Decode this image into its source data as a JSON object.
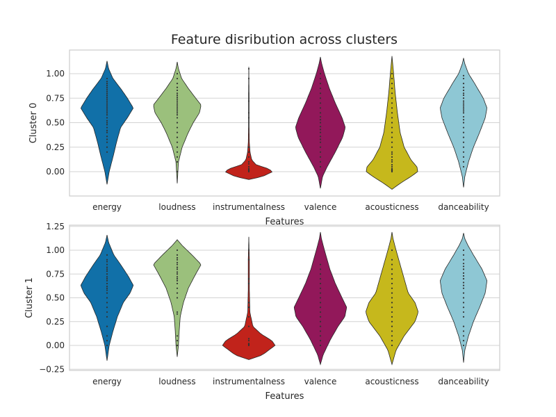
{
  "title": "Feature disribution across clusters",
  "colors": {
    "energy": "#1170a8",
    "loudness": "#9bc07c",
    "instrumentalness": "#c1231b",
    "valence": "#92185a",
    "acousticness": "#c6b81c",
    "danceability": "#8ec7d4",
    "grid": "#d3d3d3",
    "frame": "#cfcfcf",
    "outline": "#262626"
  },
  "chart_data": [
    {
      "type": "violin",
      "xlabel": "Features",
      "ylabel": "Cluster 0",
      "categories": [
        "energy",
        "loudness",
        "instrumentalness",
        "valence",
        "acousticness",
        "danceability"
      ],
      "ylim": [
        -0.25,
        1.15
      ],
      "yticks": [
        0.0,
        0.25,
        0.5,
        0.75,
        1.0
      ],
      "ytick_labels": [
        "0.00",
        "0.25",
        "0.50",
        "0.75",
        "1.00"
      ],
      "grid": true,
      "violins": [
        {
          "category": "energy",
          "min": -0.13,
          "max": 1.13,
          "max_half_width": 0.55,
          "profile": [
            [
              -0.13,
              0.0
            ],
            [
              0.0,
              0.08
            ],
            [
              0.15,
              0.22
            ],
            [
              0.3,
              0.35
            ],
            [
              0.45,
              0.5
            ],
            [
              0.55,
              0.75
            ],
            [
              0.65,
              0.97
            ],
            [
              0.75,
              0.75
            ],
            [
              0.85,
              0.5
            ],
            [
              0.95,
              0.22
            ],
            [
              1.05,
              0.06
            ],
            [
              1.13,
              0.0
            ]
          ],
          "points": [
            0.2,
            0.25,
            0.3,
            0.33,
            0.36,
            0.4,
            0.42,
            0.45,
            0.48,
            0.5,
            0.52,
            0.55,
            0.58,
            0.6,
            0.62,
            0.64,
            0.66,
            0.68,
            0.7,
            0.72,
            0.74,
            0.76,
            0.78,
            0.8,
            0.82,
            0.84,
            0.86,
            0.88,
            0.9,
            0.92,
            0.95
          ]
        },
        {
          "category": "loudness",
          "min": -0.12,
          "max": 1.12,
          "max_half_width": 0.5,
          "profile": [
            [
              -0.12,
              0.0
            ],
            [
              0.1,
              0.05
            ],
            [
              0.25,
              0.2
            ],
            [
              0.4,
              0.45
            ],
            [
              0.5,
              0.65
            ],
            [
              0.6,
              0.9
            ],
            [
              0.68,
              0.97
            ],
            [
              0.75,
              0.75
            ],
            [
              0.85,
              0.45
            ],
            [
              0.95,
              0.18
            ],
            [
              1.05,
              0.05
            ],
            [
              1.12,
              0.0
            ]
          ],
          "points": [
            0.0,
            0.1,
            0.15,
            0.2,
            0.25,
            0.3,
            0.35,
            0.4,
            0.45,
            0.5,
            0.55,
            0.58,
            0.6,
            0.62,
            0.64,
            0.66,
            0.68,
            0.7,
            0.72,
            0.74,
            0.76,
            0.78,
            0.8,
            0.83,
            0.86,
            0.9,
            0.95,
            1.0
          ]
        },
        {
          "category": "instrumentalness",
          "min": -0.08,
          "max": 1.07,
          "max_half_width": 0.5,
          "profile": [
            [
              -0.08,
              0.0
            ],
            [
              -0.05,
              0.55
            ],
            [
              0.0,
              0.97
            ],
            [
              0.03,
              0.8
            ],
            [
              0.07,
              0.3
            ],
            [
              0.12,
              0.12
            ],
            [
              0.2,
              0.05
            ],
            [
              0.3,
              0.02
            ],
            [
              0.5,
              0.01
            ],
            [
              0.8,
              0.01
            ],
            [
              1.07,
              0.0
            ]
          ],
          "points": [
            0.0,
            0.01,
            0.02,
            0.03,
            0.05,
            0.08,
            0.1,
            0.15,
            0.2,
            0.25,
            0.55,
            0.6,
            0.72,
            0.95,
            1.05
          ]
        },
        {
          "category": "valence",
          "min": -0.17,
          "max": 1.17,
          "max_half_width": 0.55,
          "profile": [
            [
              -0.17,
              0.0
            ],
            [
              -0.05,
              0.08
            ],
            [
              0.05,
              0.25
            ],
            [
              0.2,
              0.55
            ],
            [
              0.35,
              0.82
            ],
            [
              0.45,
              0.92
            ],
            [
              0.55,
              0.8
            ],
            [
              0.7,
              0.55
            ],
            [
              0.85,
              0.33
            ],
            [
              1.0,
              0.15
            ],
            [
              1.1,
              0.05
            ],
            [
              1.17,
              0.0
            ]
          ],
          "points": [
            0.05,
            0.1,
            0.15,
            0.2,
            0.25,
            0.3,
            0.33,
            0.36,
            0.4,
            0.43,
            0.46,
            0.5,
            0.53,
            0.56,
            0.6,
            0.65,
            0.7,
            0.75,
            0.8,
            0.85,
            0.9,
            0.95,
            1.0
          ]
        },
        {
          "category": "acousticness",
          "min": -0.18,
          "max": 1.18,
          "max_half_width": 0.55,
          "profile": [
            [
              -0.18,
              0.0
            ],
            [
              -0.12,
              0.3
            ],
            [
              -0.05,
              0.7
            ],
            [
              0.0,
              0.95
            ],
            [
              0.05,
              0.92
            ],
            [
              0.12,
              0.7
            ],
            [
              0.25,
              0.45
            ],
            [
              0.4,
              0.3
            ],
            [
              0.6,
              0.2
            ],
            [
              0.8,
              0.12
            ],
            [
              1.0,
              0.06
            ],
            [
              1.18,
              0.0
            ]
          ],
          "points": [
            0.0,
            0.01,
            0.02,
            0.03,
            0.05,
            0.07,
            0.1,
            0.12,
            0.15,
            0.18,
            0.2,
            0.25,
            0.3,
            0.35,
            0.4,
            0.45,
            0.5,
            0.55,
            0.6,
            0.65,
            0.7,
            0.75,
            0.8,
            0.85,
            0.9,
            0.95,
            1.0
          ]
        },
        {
          "category": "danceability",
          "min": -0.16,
          "max": 1.16,
          "max_half_width": 0.5,
          "profile": [
            [
              -0.16,
              0.0
            ],
            [
              -0.05,
              0.05
            ],
            [
              0.1,
              0.2
            ],
            [
              0.25,
              0.4
            ],
            [
              0.4,
              0.65
            ],
            [
              0.55,
              0.88
            ],
            [
              0.65,
              0.95
            ],
            [
              0.75,
              0.8
            ],
            [
              0.9,
              0.45
            ],
            [
              1.0,
              0.2
            ],
            [
              1.1,
              0.05
            ],
            [
              1.16,
              0.0
            ]
          ],
          "points": [
            0.05,
            0.1,
            0.15,
            0.2,
            0.25,
            0.3,
            0.35,
            0.4,
            0.45,
            0.5,
            0.53,
            0.56,
            0.6,
            0.62,
            0.64,
            0.66,
            0.68,
            0.7,
            0.72,
            0.75,
            0.78,
            0.8,
            0.83,
            0.86,
            0.9,
            0.95,
            0.98
          ]
        }
      ]
    },
    {
      "type": "violin",
      "xlabel": "Features",
      "ylabel": "Cluster 1",
      "categories": [
        "energy",
        "loudness",
        "instrumentalness",
        "valence",
        "acousticness",
        "danceability"
      ],
      "ylim": [
        -0.26,
        1.27
      ],
      "yticks": [
        -0.25,
        0.0,
        0.25,
        0.5,
        0.75,
        1.0,
        1.25
      ],
      "ytick_labels": [
        "−0.25",
        "0.00",
        "0.25",
        "0.50",
        "0.75",
        "1.00",
        "1.25"
      ],
      "grid": true,
      "violins": [
        {
          "category": "energy",
          "min": -0.16,
          "max": 1.16,
          "max_half_width": 0.55,
          "profile": [
            [
              -0.16,
              0.0
            ],
            [
              0.0,
              0.08
            ],
            [
              0.15,
              0.22
            ],
            [
              0.3,
              0.38
            ],
            [
              0.45,
              0.6
            ],
            [
              0.55,
              0.85
            ],
            [
              0.63,
              0.97
            ],
            [
              0.72,
              0.8
            ],
            [
              0.85,
              0.5
            ],
            [
              0.95,
              0.25
            ],
            [
              1.08,
              0.06
            ],
            [
              1.16,
              0.0
            ]
          ],
          "points": [
            0.0,
            0.05,
            0.1,
            0.2,
            0.3,
            0.35,
            0.4,
            0.45,
            0.5,
            0.55,
            0.58,
            0.6,
            0.62,
            0.65,
            0.68,
            0.7,
            0.72,
            0.75,
            0.78,
            0.8,
            0.82,
            0.85,
            0.88,
            0.9,
            0.95
          ]
        },
        {
          "category": "loudness",
          "min": -0.12,
          "max": 1.11,
          "max_half_width": 0.5,
          "profile": [
            [
              -0.12,
              0.0
            ],
            [
              0.0,
              0.05
            ],
            [
              0.15,
              0.08
            ],
            [
              0.3,
              0.12
            ],
            [
              0.45,
              0.25
            ],
            [
              0.6,
              0.45
            ],
            [
              0.75,
              0.75
            ],
            [
              0.85,
              0.97
            ],
            [
              0.95,
              0.6
            ],
            [
              1.05,
              0.2
            ],
            [
              1.11,
              0.0
            ]
          ],
          "points": [
            0.0,
            0.05,
            0.1,
            0.35,
            0.33,
            0.5,
            0.55,
            0.6,
            0.65,
            0.68,
            0.7,
            0.72,
            0.75,
            0.77,
            0.8,
            0.82,
            0.85,
            0.87,
            0.9,
            0.92,
            0.95,
            1.0
          ]
        },
        {
          "category": "instrumentalness",
          "min": -0.15,
          "max": 1.14,
          "max_half_width": 0.55,
          "profile": [
            [
              -0.15,
              0.0
            ],
            [
              -0.1,
              0.5
            ],
            [
              0.0,
              0.97
            ],
            [
              0.05,
              0.85
            ],
            [
              0.12,
              0.45
            ],
            [
              0.2,
              0.15
            ],
            [
              0.35,
              0.04
            ],
            [
              0.6,
              0.02
            ],
            [
              0.9,
              0.02
            ],
            [
              1.14,
              0.0
            ]
          ],
          "points": [
            0.0,
            0.01,
            0.02,
            0.05,
            0.07,
            0.2,
            0.3,
            0.4,
            0.45,
            0.65,
            0.7,
            0.9,
            0.95,
            1.0
          ]
        },
        {
          "category": "valence",
          "min": -0.2,
          "max": 1.19,
          "max_half_width": 0.55,
          "profile": [
            [
              -0.2,
              0.0
            ],
            [
              -0.1,
              0.1
            ],
            [
              0.05,
              0.35
            ],
            [
              0.2,
              0.65
            ],
            [
              0.3,
              0.9
            ],
            [
              0.4,
              0.97
            ],
            [
              0.5,
              0.8
            ],
            [
              0.65,
              0.55
            ],
            [
              0.8,
              0.35
            ],
            [
              1.0,
              0.15
            ],
            [
              1.12,
              0.04
            ],
            [
              1.19,
              0.0
            ]
          ],
          "points": [
            0.0,
            0.05,
            0.1,
            0.15,
            0.2,
            0.25,
            0.3,
            0.35,
            0.4,
            0.45,
            0.5,
            0.55,
            0.6,
            0.65,
            0.7,
            0.75,
            0.8,
            0.85
          ]
        },
        {
          "category": "acousticness",
          "min": -0.2,
          "max": 1.19,
          "max_half_width": 0.55,
          "profile": [
            [
              -0.2,
              0.0
            ],
            [
              -0.05,
              0.15
            ],
            [
              0.1,
              0.45
            ],
            [
              0.25,
              0.85
            ],
            [
              0.35,
              0.97
            ],
            [
              0.45,
              0.85
            ],
            [
              0.55,
              0.6
            ],
            [
              0.7,
              0.45
            ],
            [
              0.85,
              0.3
            ],
            [
              1.0,
              0.15
            ],
            [
              1.12,
              0.04
            ],
            [
              1.19,
              0.0
            ]
          ],
          "points": [
            0.0,
            0.05,
            0.1,
            0.15,
            0.2,
            0.25,
            0.3,
            0.35,
            0.4,
            0.45,
            0.5,
            0.55,
            0.6,
            0.65,
            0.7,
            0.75,
            0.8,
            0.85,
            0.9,
            1.0
          ]
        },
        {
          "category": "danceability",
          "min": -0.18,
          "max": 1.18,
          "max_half_width": 0.5,
          "profile": [
            [
              -0.18,
              0.0
            ],
            [
              -0.05,
              0.05
            ],
            [
              0.1,
              0.2
            ],
            [
              0.25,
              0.4
            ],
            [
              0.4,
              0.65
            ],
            [
              0.55,
              0.88
            ],
            [
              0.68,
              0.95
            ],
            [
              0.8,
              0.75
            ],
            [
              0.95,
              0.4
            ],
            [
              1.05,
              0.18
            ],
            [
              1.12,
              0.05
            ],
            [
              1.18,
              0.0
            ]
          ],
          "points": [
            0.0,
            0.05,
            0.1,
            0.15,
            0.2,
            0.3,
            0.35,
            0.4,
            0.45,
            0.5,
            0.55,
            0.6,
            0.63,
            0.66,
            0.7,
            0.73,
            0.76,
            0.8,
            0.83,
            0.86,
            0.9,
            0.95,
            1.0
          ]
        }
      ]
    }
  ]
}
